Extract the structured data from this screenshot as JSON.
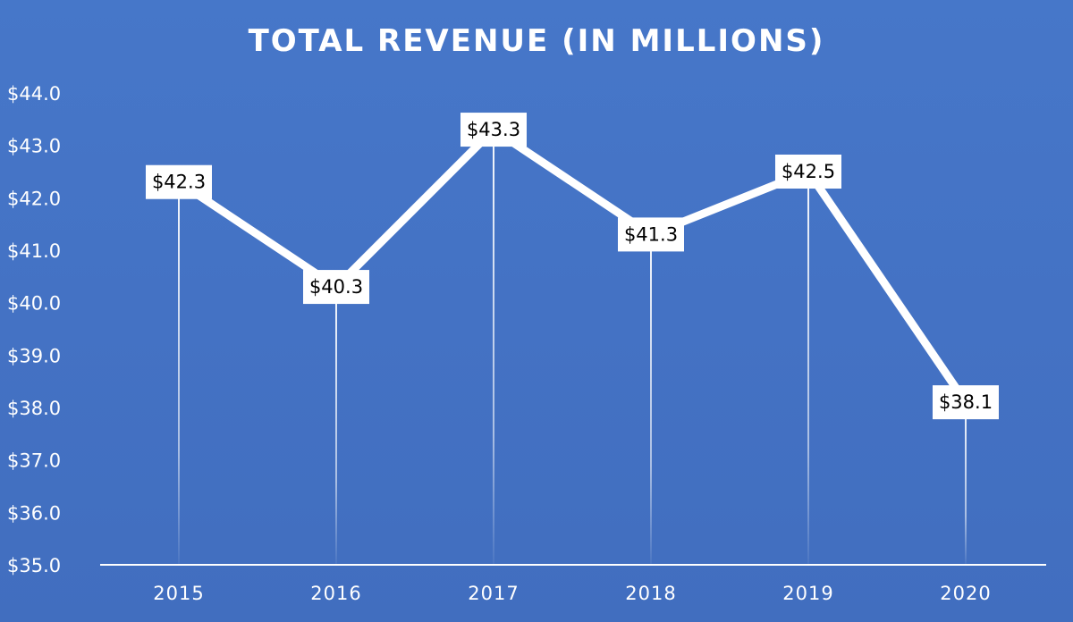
{
  "chart_data": {
    "type": "line",
    "title": "TOTAL REVENUE (IN MILLIONS)",
    "xlabel": "",
    "ylabel": "",
    "categories": [
      "2015",
      "2016",
      "2017",
      "2018",
      "2019",
      "2020"
    ],
    "series": [
      {
        "name": "Total Revenue",
        "values": [
          42.3,
          40.3,
          43.3,
          41.3,
          42.5,
          38.1
        ],
        "data_labels": [
          "$42.3",
          "$40.3",
          "$43.3",
          "$41.3",
          "$42.5",
          "$38.1"
        ]
      }
    ],
    "ylim": [
      35.0,
      44.0
    ],
    "yticks": [
      35.0,
      36.0,
      37.0,
      38.0,
      39.0,
      40.0,
      41.0,
      42.0,
      43.0,
      44.0
    ],
    "ytick_labels": [
      "$35.0",
      "$36.0",
      "$37.0",
      "$38.0",
      "$39.0",
      "$40.0",
      "$41.0",
      "$42.0",
      "$43.0",
      "$44.0"
    ],
    "grid": false,
    "drop_lines": true,
    "legend": "none"
  },
  "colors": {
    "background": "#4472c4",
    "line": "#ffffff",
    "axis": "#ffffff",
    "label_box": "#ffffff",
    "label_text": "#000000"
  }
}
